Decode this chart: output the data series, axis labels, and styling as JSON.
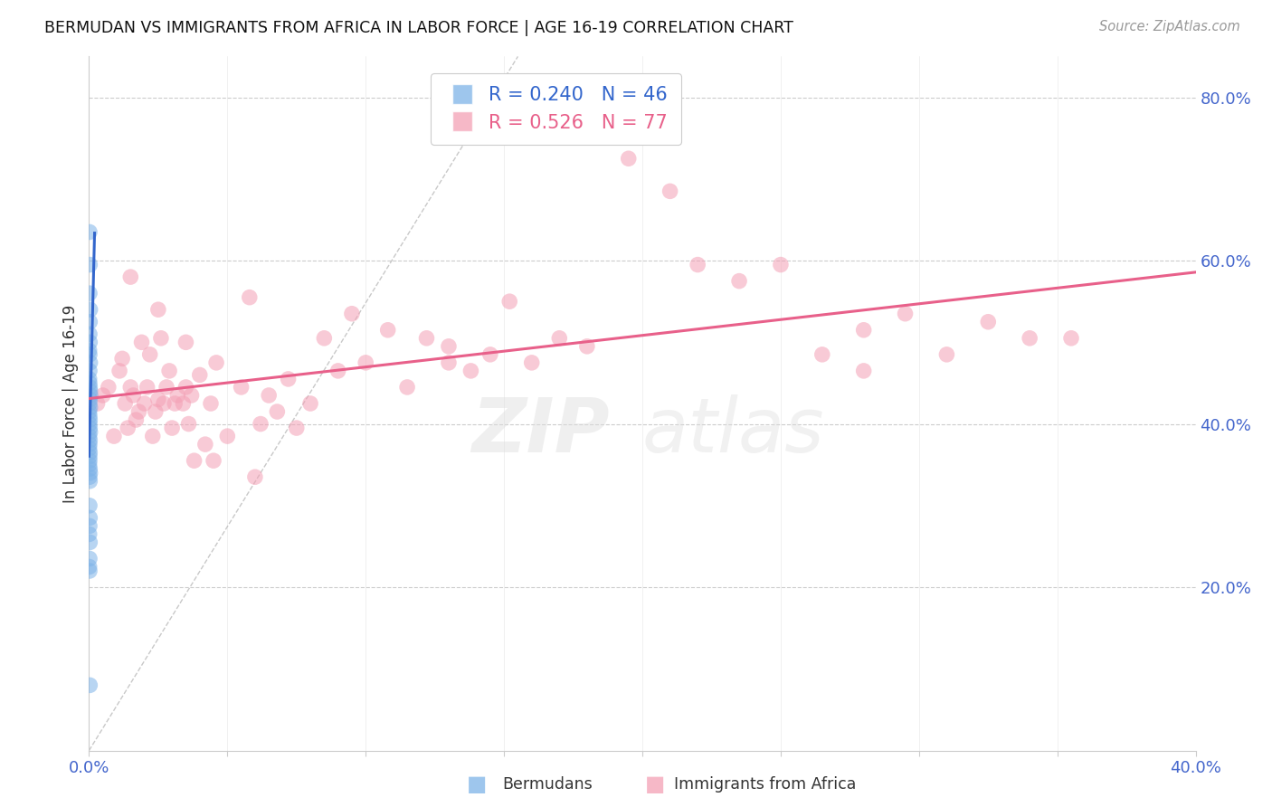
{
  "title": "BERMUDAN VS IMMIGRANTS FROM AFRICA IN LABOR FORCE | AGE 16-19 CORRELATION CHART",
  "source": "Source: ZipAtlas.com",
  "ylabel": "In Labor Force | Age 16-19",
  "xlim": [
    0.0,
    0.4
  ],
  "ylim": [
    0.0,
    0.85
  ],
  "ytick_right_vals": [
    0.2,
    0.4,
    0.6,
    0.8
  ],
  "blue_R": 0.24,
  "blue_N": 46,
  "pink_R": 0.526,
  "pink_N": 77,
  "blue_color": "#7EB3E8",
  "pink_color": "#F4A0B5",
  "blue_line_color": "#3366CC",
  "pink_line_color": "#E8608A",
  "label_bermudans": "Bermudans",
  "label_immigrants": "Immigrants from Africa",
  "watermark_zip": "ZIP",
  "watermark_atlas": "atlas",
  "background_color": "#FFFFFF",
  "grid_color": "#CCCCCC",
  "axis_label_color": "#4466CC",
  "title_color": "#111111",
  "blue_scatter_x": [
    0.0002,
    0.0003,
    0.0002,
    0.0004,
    0.0003,
    0.0002,
    0.0003,
    0.0001,
    0.0002,
    0.0004,
    0.0002,
    0.0001,
    0.0002,
    0.0003,
    0.0004,
    0.0005,
    0.0003,
    0.0002,
    0.0004,
    0.0001,
    0.0002,
    0.0003,
    0.0002,
    0.0003,
    0.0004,
    0.0001,
    0.0003,
    0.0002,
    0.0001,
    0.0003,
    0.0002,
    0.0002,
    0.0001,
    0.0003,
    0.0004,
    0.0002,
    0.0003,
    0.0002,
    0.0003,
    0.0002,
    0.0001,
    0.0003,
    0.0002,
    0.0001,
    0.0002,
    0.0003
  ],
  "blue_scatter_y": [
    0.635,
    0.595,
    0.56,
    0.54,
    0.525,
    0.51,
    0.5,
    0.49,
    0.485,
    0.475,
    0.465,
    0.455,
    0.45,
    0.445,
    0.44,
    0.435,
    0.43,
    0.425,
    0.42,
    0.415,
    0.41,
    0.405,
    0.4,
    0.395,
    0.39,
    0.385,
    0.38,
    0.375,
    0.37,
    0.365,
    0.36,
    0.355,
    0.35,
    0.345,
    0.34,
    0.335,
    0.33,
    0.3,
    0.285,
    0.275,
    0.265,
    0.255,
    0.235,
    0.225,
    0.22,
    0.08
  ],
  "pink_scatter_x": [
    0.003,
    0.005,
    0.007,
    0.009,
    0.011,
    0.012,
    0.013,
    0.014,
    0.015,
    0.016,
    0.017,
    0.018,
    0.019,
    0.02,
    0.021,
    0.022,
    0.023,
    0.024,
    0.025,
    0.026,
    0.027,
    0.028,
    0.029,
    0.03,
    0.031,
    0.032,
    0.034,
    0.035,
    0.036,
    0.037,
    0.038,
    0.04,
    0.042,
    0.044,
    0.046,
    0.05,
    0.055,
    0.058,
    0.062,
    0.065,
    0.068,
    0.072,
    0.075,
    0.08,
    0.085,
    0.09,
    0.095,
    0.1,
    0.108,
    0.115,
    0.122,
    0.13,
    0.138,
    0.145,
    0.152,
    0.16,
    0.17,
    0.18,
    0.195,
    0.21,
    0.22,
    0.235,
    0.25,
    0.265,
    0.28,
    0.295,
    0.31,
    0.325,
    0.34,
    0.355,
    0.015,
    0.025,
    0.035,
    0.045,
    0.06,
    0.13,
    0.28
  ],
  "pink_scatter_y": [
    0.425,
    0.435,
    0.445,
    0.385,
    0.465,
    0.48,
    0.425,
    0.395,
    0.445,
    0.435,
    0.405,
    0.415,
    0.5,
    0.425,
    0.445,
    0.485,
    0.385,
    0.415,
    0.43,
    0.505,
    0.425,
    0.445,
    0.465,
    0.395,
    0.425,
    0.435,
    0.425,
    0.445,
    0.4,
    0.435,
    0.355,
    0.46,
    0.375,
    0.425,
    0.475,
    0.385,
    0.445,
    0.555,
    0.4,
    0.435,
    0.415,
    0.455,
    0.395,
    0.425,
    0.505,
    0.465,
    0.535,
    0.475,
    0.515,
    0.445,
    0.505,
    0.475,
    0.465,
    0.485,
    0.55,
    0.475,
    0.505,
    0.495,
    0.725,
    0.685,
    0.595,
    0.575,
    0.595,
    0.485,
    0.515,
    0.535,
    0.485,
    0.525,
    0.505,
    0.505,
    0.58,
    0.54,
    0.5,
    0.355,
    0.335,
    0.495,
    0.465
  ]
}
